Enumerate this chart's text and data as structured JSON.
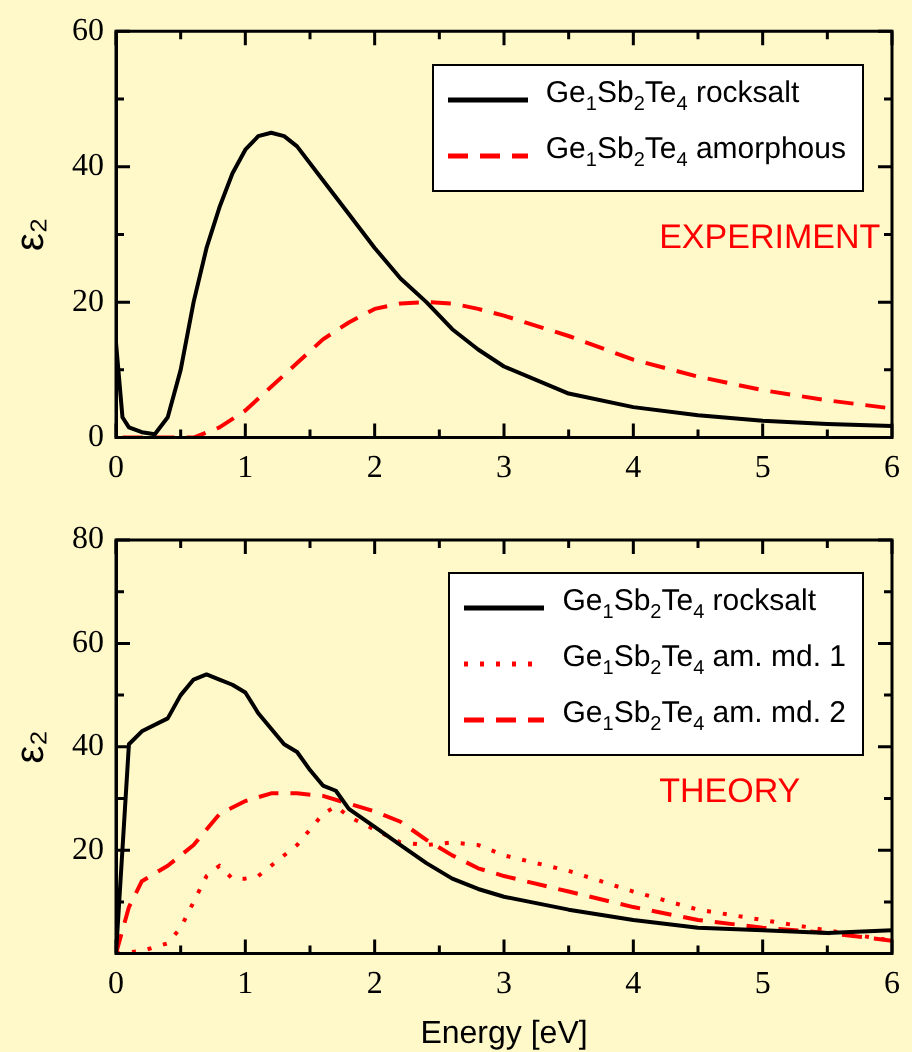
{
  "chart_data": [
    {
      "type": "line",
      "ylabel": "ε₂",
      "annotations": [
        "EXPERIMENT"
      ],
      "legend": "top right",
      "marker": "none",
      "grid": false,
      "xlim": [
        0,
        6
      ],
      "xticks": [
        0,
        {
          "value": 0.5,
          "label": null
        },
        1,
        {
          "value": 1.5,
          "label": null
        },
        2,
        {
          "value": 2.5,
          "label": null
        },
        3,
        {
          "value": 3.5,
          "label": null
        },
        4,
        {
          "value": 4.5,
          "label": null
        },
        5,
        {
          "value": 5.5,
          "label": null
        },
        6
      ],
      "ylim": [
        0,
        60
      ],
      "yticks": [
        0,
        {
          "value": 10,
          "label": null
        },
        20,
        {
          "value": 30,
          "label": null
        },
        40,
        {
          "value": 50,
          "label": null
        },
        60
      ],
      "series": [
        {
          "name": "Ge$_{1}$Sb$_{2}$Te$_{4}$ rocksalt",
          "color": "#000000",
          "line_style": "solid",
          "x": [
            0,
            0.05,
            0.1,
            0.2,
            0.3,
            0.4,
            0.5,
            0.6,
            0.7,
            0.8,
            0.9,
            1.0,
            1.1,
            1.2,
            1.3,
            1.4,
            1.6,
            1.8,
            2.0,
            2.2,
            2.4,
            2.6,
            2.8,
            3.0,
            3.5,
            4.0,
            4.5,
            5,
            5.5,
            6
          ],
          "values": [
            14,
            3,
            1.5,
            0.8,
            0.5,
            3,
            10,
            20,
            28,
            34,
            39,
            42.5,
            44.5,
            45,
            44.5,
            43,
            38,
            33,
            28,
            23.5,
            20,
            16,
            13,
            10.5,
            6.5,
            4.5,
            3.3,
            2.5,
            2,
            1.7
          ]
        },
        {
          "name": "Ge$_{1}$Sb$_{2}$Te$_{4}$ amorphous",
          "color": "#ff0000",
          "line_style": "dashed",
          "x": [
            0.05,
            0.6,
            0.8,
            1.0,
            1.2,
            1.4,
            1.6,
            1.8,
            2.0,
            2.2,
            2.4,
            2.6,
            2.8,
            3.0,
            3.5,
            4.0,
            4.5,
            5,
            5.5,
            6
          ],
          "values": [
            0,
            0,
            1.5,
            4,
            7.5,
            11,
            14.5,
            17,
            19,
            19.8,
            20,
            19.8,
            19,
            18,
            15,
            11.5,
            9,
            7,
            5.5,
            4.3
          ]
        }
      ]
    },
    {
      "type": "line",
      "xlabel": "Energy [eV]",
      "ylabel": "ε₂",
      "annotations": [
        "THEORY"
      ],
      "legend": "top right",
      "marker": "none",
      "grid": false,
      "xlim": [
        0,
        6
      ],
      "xticks": [
        0,
        {
          "value": 0.5,
          "label": null
        },
        1,
        {
          "value": 1.5,
          "label": null
        },
        2,
        {
          "value": 2.5,
          "label": null
        },
        3,
        {
          "value": 3.5,
          "label": null
        },
        4,
        {
          "value": 4.5,
          "label": null
        },
        5,
        {
          "value": 5.5,
          "label": null
        },
        6
      ],
      "ylim": [
        0,
        80
      ],
      "yticks": [
        {
          "value": 0,
          "label": null
        },
        {
          "value": 10,
          "label": null
        },
        20,
        {
          "value": 30,
          "label": null
        },
        40,
        {
          "value": 50,
          "label": null
        },
        60,
        {
          "value": 70,
          "label": null
        },
        80
      ],
      "series": [
        {
          "name": "Ge$_{1}$Sb$_{2}$Te$_{4}$ rocksalt",
          "color": "#000000",
          "line_style": "solid",
          "x": [
            0,
            0.1,
            0.2,
            0.4,
            0.5,
            0.6,
            0.7,
            0.8,
            0.9,
            1.0,
            1.1,
            1.2,
            1.3,
            1.4,
            1.5,
            1.6,
            1.7,
            1.8,
            2.0,
            2.2,
            2.4,
            2.6,
            2.8,
            3.0,
            3.2,
            3.5,
            4.0,
            4.5,
            5,
            5.5,
            6
          ],
          "values": [
            0,
            40.5,
            43,
            45.5,
            50,
            53,
            54,
            53,
            52,
            50.5,
            46.5,
            43.5,
            40.5,
            39,
            35.5,
            32.5,
            31.5,
            28,
            24.5,
            21,
            17.5,
            14.5,
            12.5,
            11,
            10,
            8.5,
            6.5,
            5,
            4.5,
            4,
            4.5
          ]
        },
        {
          "name": "Ge$_{1}$Sb$_{2}$Te$_{4}$ am. md. 1",
          "color": "#ff0000",
          "line_style": "dotted",
          "x": [
            0,
            0.2,
            0.4,
            0.5,
            0.6,
            0.7,
            0.8,
            0.9,
            1.0,
            1.1,
            1.2,
            1.4,
            1.5,
            1.6,
            1.7,
            1.8,
            2.0,
            2.2,
            2.4,
            2.6,
            2.8,
            3.0,
            3.5,
            4.0,
            4.5,
            5,
            5.5,
            6
          ],
          "values": [
            0,
            0.5,
            2,
            5,
            10,
            15,
            17,
            14.5,
            14.5,
            15,
            17,
            21,
            24,
            27,
            28.5,
            26.5,
            24,
            21.5,
            21,
            21.5,
            21,
            19,
            16,
            12,
            8.5,
            6.5,
            4.5,
            2.5
          ]
        },
        {
          "name": "Ge$_{1}$Sb$_{2}$Te$_{4}$ am. md. 2",
          "color": "#ff0000",
          "line_style": "dashed",
          "x": [
            0,
            0.1,
            0.2,
            0.4,
            0.6,
            0.8,
            1.0,
            1.2,
            1.4,
            1.6,
            1.8,
            2.0,
            2.2,
            2.4,
            2.6,
            2.8,
            3.0,
            3.5,
            4.0,
            4.5,
            5,
            5.5,
            6
          ],
          "values": [
            0,
            9,
            14,
            17,
            21,
            27,
            29.5,
            31,
            31,
            30.5,
            29,
            27.5,
            25.5,
            22,
            19,
            16.5,
            15,
            12,
            9,
            6.5,
            5,
            4,
            2.5
          ]
        }
      ]
    }
  ]
}
